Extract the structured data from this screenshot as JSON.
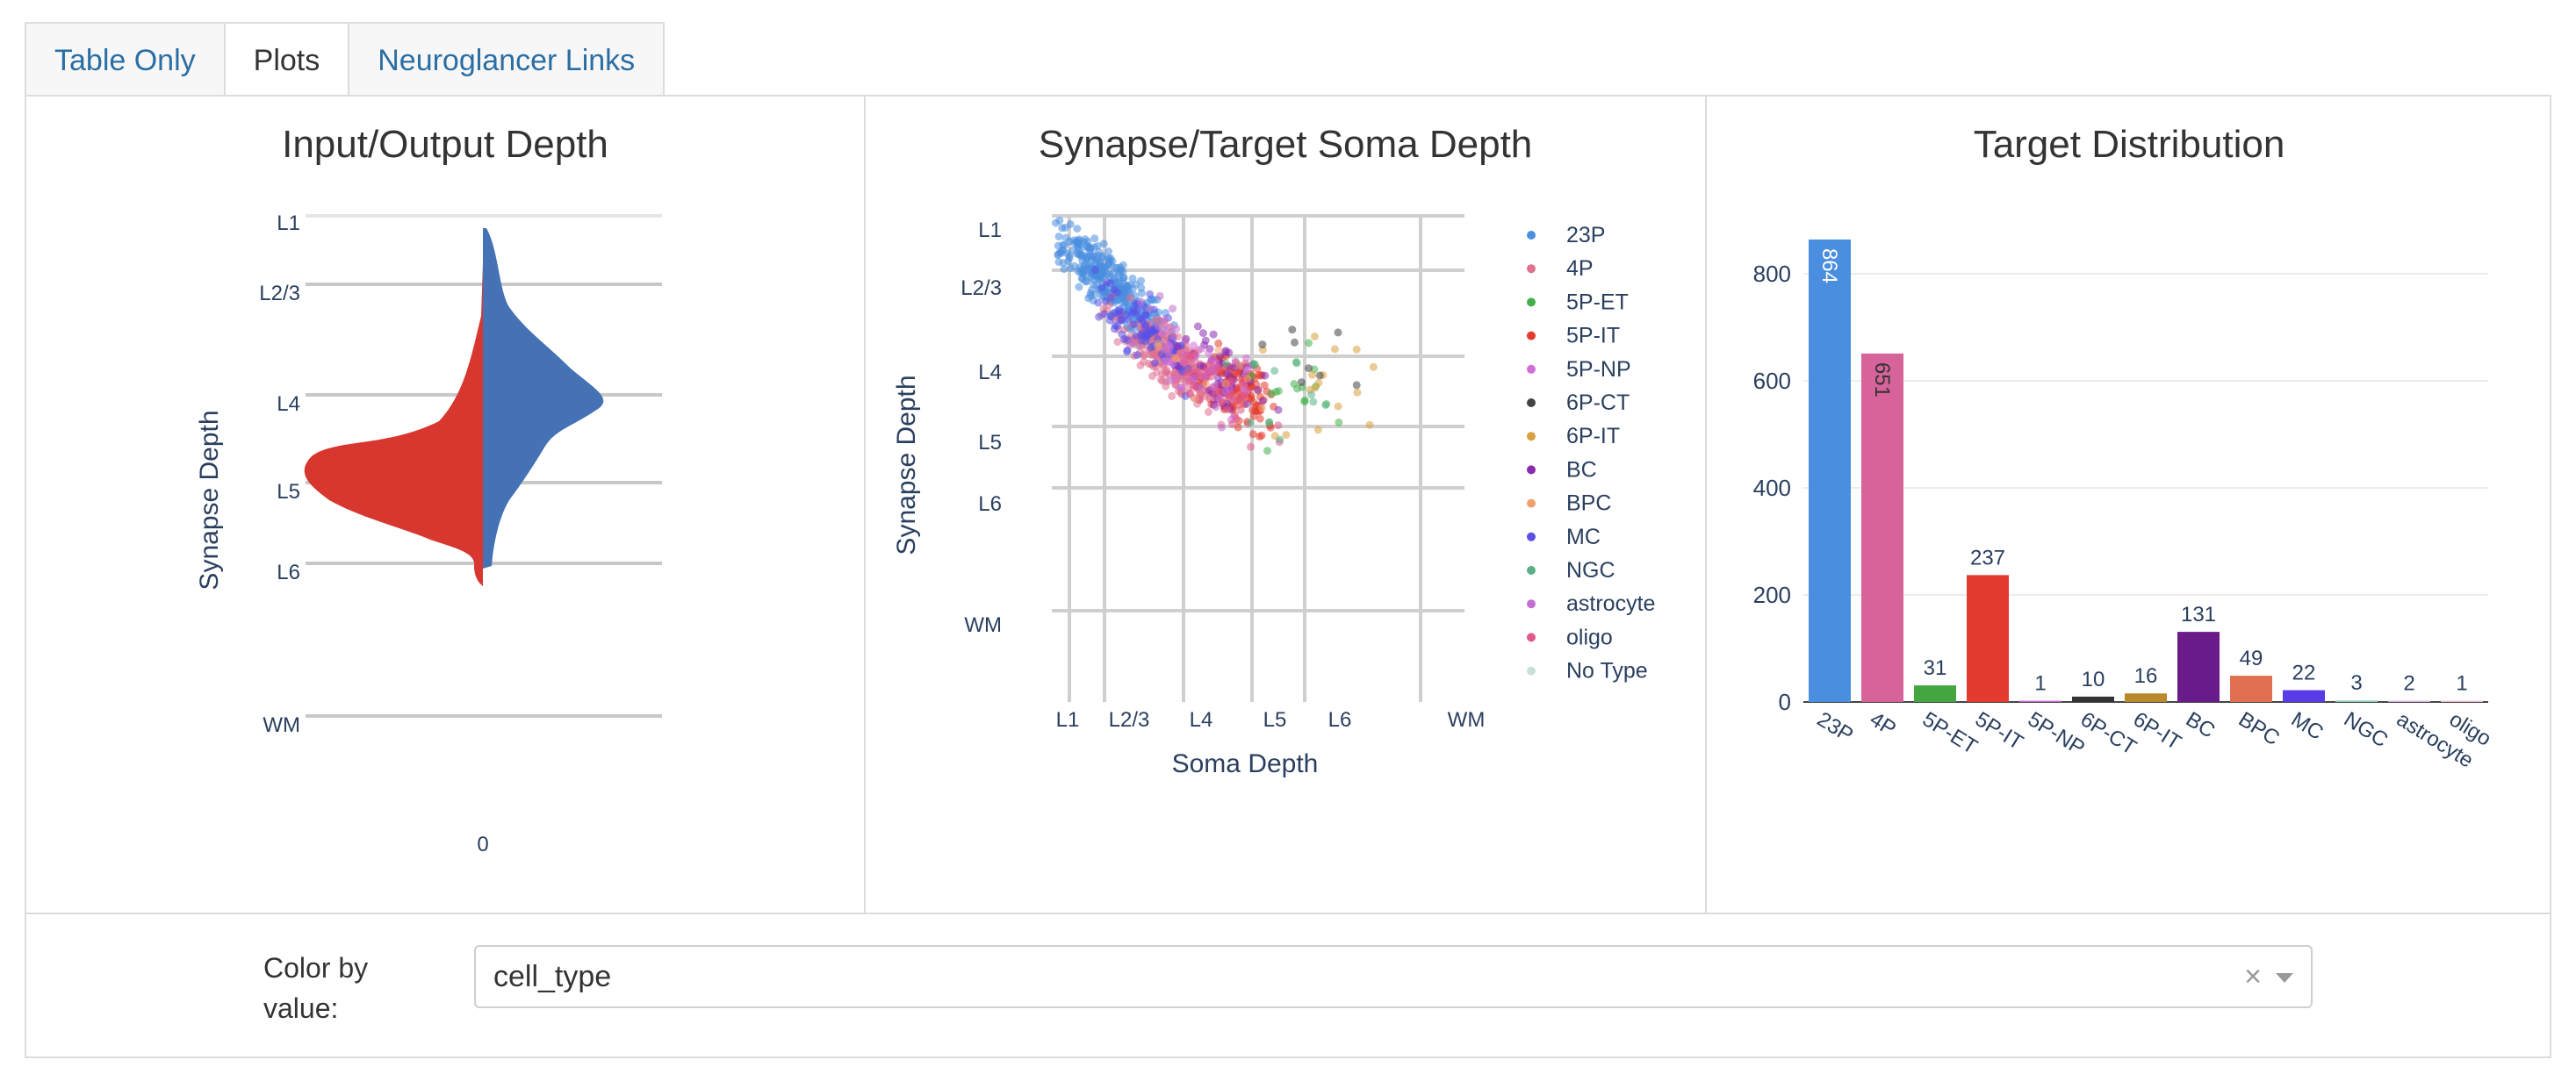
{
  "tabs": [
    {
      "label": "Table Only",
      "active": false
    },
    {
      "label": "Plots",
      "active": true
    },
    {
      "label": "Neuroglancer Links",
      "active": false
    }
  ],
  "plots": {
    "violin": {
      "title": "Input/Output Depth",
      "ylabel": "Synapse Depth",
      "xtick": "0",
      "layers": [
        "L1",
        "L2/3",
        "L4",
        "L5",
        "L6",
        "WM"
      ],
      "colors": {
        "input": "#d7372e",
        "output": "#4472b5"
      }
    },
    "scatter": {
      "title": "Synapse/Target Soma Depth",
      "xlabel": "Soma Depth",
      "ylabel": "Synapse Depth",
      "xlayers": [
        "L1",
        "L2/3",
        "L4",
        "L5",
        "L6",
        "WM"
      ],
      "ylayers": [
        "L1",
        "L2/3",
        "L4",
        "L5",
        "L6",
        "WM"
      ],
      "legend": [
        "23P",
        "4P",
        "5P-ET",
        "5P-IT",
        "5P-NP",
        "6P-CT",
        "6P-IT",
        "BC",
        "BPC",
        "MC",
        "NGC",
        "astrocyte",
        "oligo",
        "No Type"
      ]
    },
    "bar": {
      "title": "Target Distribution"
    }
  },
  "chart_data": [
    {
      "type": "bar",
      "title": "Target Distribution",
      "categories": [
        "23P",
        "4P",
        "5P-ET",
        "5P-IT",
        "5P-NP",
        "6P-CT",
        "6P-IT",
        "BC",
        "BPC",
        "MC",
        "NGC",
        "astrocyte",
        "oligo"
      ],
      "values": [
        864,
        651,
        31,
        237,
        1,
        10,
        16,
        131,
        49,
        22,
        3,
        2,
        1
      ],
      "colors": [
        "#4a8ee0",
        "#d6649a",
        "#44a641",
        "#e53a2e",
        "#c76fd4",
        "#333333",
        "#b88a2c",
        "#6a1b8a",
        "#e07050",
        "#5a3be8",
        "#9cd1c4",
        "#d6b8e0",
        "#f0c0d0"
      ],
      "yticks": [
        0,
        200,
        400,
        600,
        800
      ],
      "ylim": [
        0,
        900
      ],
      "xlabel": "",
      "ylabel": ""
    },
    {
      "type": "scatter",
      "title": "Synapse/Target Soma Depth",
      "xlabel": "Soma Depth",
      "ylabel": "Synapse Depth",
      "series": [
        {
          "name": "23P",
          "color": "#4a8ee0"
        },
        {
          "name": "4P",
          "color": "#e07090"
        },
        {
          "name": "5P-ET",
          "color": "#44b04a"
        },
        {
          "name": "5P-IT",
          "color": "#e53a2e"
        },
        {
          "name": "5P-NP",
          "color": "#d070d8"
        },
        {
          "name": "6P-CT",
          "color": "#444444"
        },
        {
          "name": "6P-IT",
          "color": "#d8a040"
        },
        {
          "name": "BC",
          "color": "#8a2ab0"
        },
        {
          "name": "BPC",
          "color": "#f0a070"
        },
        {
          "name": "MC",
          "color": "#5a50e8"
        },
        {
          "name": "NGC",
          "color": "#5ab088"
        },
        {
          "name": "astrocyte",
          "color": "#c070d0"
        },
        {
          "name": "oligo",
          "color": "#e05888"
        },
        {
          "name": "No Type",
          "color": "#c8e0d8"
        }
      ]
    },
    {
      "type": "area",
      "title": "Input/Output Depth",
      "ylabel": "Synapse Depth",
      "series": [
        {
          "name": "input",
          "color": "#d7372e"
        },
        {
          "name": "output",
          "color": "#4472b5"
        }
      ]
    }
  ],
  "controls": {
    "color_label": "Color by value:",
    "selected": "cell_type",
    "clear_glyph": "×"
  }
}
